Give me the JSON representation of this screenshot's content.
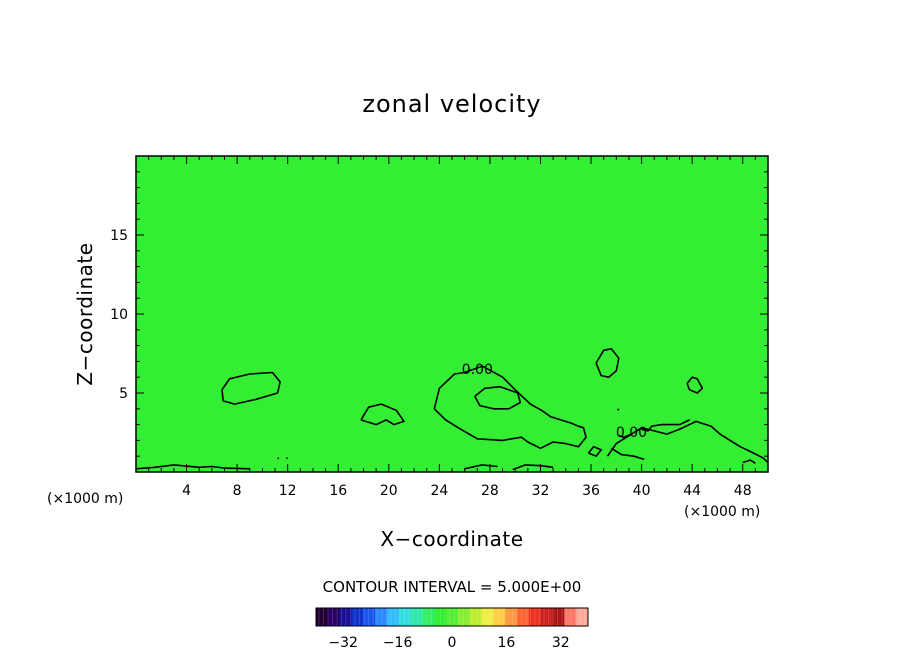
{
  "chart_data": {
    "type": "heatmap",
    "title": "zonal velocity",
    "xlabel": "X−coordinate",
    "ylabel": "Z−coordinate",
    "x_unit": "(×1000 m)",
    "z_unit": "(×1000 m)",
    "xlim": [
      0,
      50
    ],
    "ylim": [
      0,
      20
    ],
    "x_ticks": [
      4,
      8,
      12,
      16,
      20,
      24,
      28,
      32,
      36,
      40,
      44,
      48
    ],
    "x_tick_labels": [
      "4",
      "8",
      "12",
      "16",
      "20",
      "24",
      "28",
      "32",
      "36",
      "40",
      "44",
      "48"
    ],
    "y_ticks": [
      5,
      10,
      15
    ],
    "y_tick_labels": [
      "5",
      "10",
      "15"
    ],
    "background_value": 0,
    "fill_color": "#33ee33",
    "contour_interval_label": "CONTOUR INTERVAL = 5.000E+00",
    "contour_interval": 5.0,
    "contour_labels": [
      {
        "text": "0.00",
        "x": 27.0,
        "z": 6.2
      },
      {
        "text": "0.00",
        "x": 39.2,
        "z": 2.2
      }
    ],
    "contours": [
      {
        "level": 0,
        "points": [
          [
            6.8,
            5.2
          ],
          [
            7.4,
            5.9
          ],
          [
            9.0,
            6.2
          ],
          [
            10.8,
            6.3
          ],
          [
            11.4,
            5.7
          ],
          [
            11.2,
            5.0
          ],
          [
            9.5,
            4.6
          ],
          [
            7.8,
            4.3
          ],
          [
            6.9,
            4.5
          ],
          [
            6.8,
            5.2
          ]
        ]
      },
      {
        "level": 0,
        "points": [
          [
            17.8,
            3.3
          ],
          [
            18.4,
            4.1
          ],
          [
            19.4,
            4.3
          ],
          [
            20.6,
            3.9
          ],
          [
            21.2,
            3.2
          ],
          [
            20.4,
            3.0
          ],
          [
            19.8,
            3.3
          ],
          [
            19.0,
            3.0
          ],
          [
            17.8,
            3.3
          ]
        ]
      },
      {
        "level": 0,
        "points": [
          [
            23.6,
            4.0
          ],
          [
            24.0,
            5.3
          ],
          [
            25.2,
            6.2
          ],
          [
            26.0,
            6.3
          ],
          [
            27.4,
            6.7
          ],
          [
            29.0,
            6.0
          ],
          [
            30.0,
            5.2
          ],
          [
            31.2,
            4.3
          ],
          [
            32.1,
            3.9
          ],
          [
            32.8,
            3.5
          ],
          [
            33.6,
            3.3
          ],
          [
            34.4,
            3.1
          ],
          [
            35.0,
            2.9
          ],
          [
            35.4,
            2.8
          ],
          [
            35.6,
            2.2
          ],
          [
            35.0,
            1.6
          ],
          [
            34.0,
            1.8
          ],
          [
            33.0,
            1.9
          ],
          [
            32.0,
            1.5
          ],
          [
            31.0,
            1.9
          ],
          [
            30.5,
            2.2
          ],
          [
            29.0,
            2.0
          ],
          [
            27.0,
            2.1
          ],
          [
            25.5,
            2.8
          ],
          [
            24.5,
            3.3
          ],
          [
            23.6,
            4.0
          ]
        ]
      },
      {
        "level": 0,
        "points": [
          [
            26.8,
            4.8
          ],
          [
            27.6,
            5.3
          ],
          [
            28.8,
            5.4
          ],
          [
            30.2,
            5.0
          ],
          [
            30.4,
            4.4
          ],
          [
            29.5,
            4.0
          ],
          [
            28.3,
            4.0
          ],
          [
            27.2,
            4.2
          ],
          [
            26.8,
            4.8
          ]
        ]
      },
      {
        "level": 0,
        "points": [
          [
            36.4,
            6.9
          ],
          [
            37.0,
            7.7
          ],
          [
            37.6,
            7.8
          ],
          [
            38.2,
            7.2
          ],
          [
            38.0,
            6.4
          ],
          [
            37.4,
            6.0
          ],
          [
            36.8,
            6.1
          ],
          [
            36.4,
            6.9
          ]
        ]
      },
      {
        "level": 0,
        "points": [
          [
            35.8,
            1.2
          ],
          [
            36.2,
            1.6
          ],
          [
            36.8,
            1.4
          ],
          [
            36.4,
            1.0
          ],
          [
            35.8,
            1.2
          ]
        ]
      },
      {
        "level": 0,
        "points": [
          [
            37.3,
            1.0
          ],
          [
            38.0,
            1.8
          ],
          [
            39.2,
            2.4
          ],
          [
            40.0,
            2.8
          ],
          [
            41.0,
            2.6
          ],
          [
            42.0,
            2.4
          ],
          [
            43.0,
            2.7
          ],
          [
            44.3,
            3.2
          ],
          [
            45.5,
            2.9
          ],
          [
            46.2,
            2.4
          ],
          [
            47.0,
            2.0
          ],
          [
            47.8,
            1.6
          ],
          [
            48.6,
            1.3
          ],
          [
            49.6,
            0.9
          ],
          [
            50.0,
            0.6
          ]
        ]
      },
      {
        "level": 0,
        "points": [
          [
            40.0,
            2.7
          ],
          [
            40.5,
            2.6
          ],
          [
            40.8,
            2.9
          ],
          [
            41.6,
            3.0
          ],
          [
            43.0,
            3.0
          ],
          [
            43.8,
            3.3
          ]
        ]
      },
      {
        "level": 0,
        "points": [
          [
            38.2,
            2.3
          ],
          [
            38.6,
            2.2
          ],
          [
            39.2,
            2.4
          ]
        ]
      },
      {
        "level": 0,
        "points": [
          [
            37.6,
            1.5
          ],
          [
            38.4,
            1.1
          ],
          [
            39.4,
            1.0
          ],
          [
            40.2,
            0.8
          ]
        ]
      },
      {
        "level": 0,
        "points": [
          [
            43.6,
            5.6
          ],
          [
            44.0,
            6.0
          ],
          [
            44.4,
            5.9
          ],
          [
            44.8,
            5.3
          ],
          [
            44.4,
            5.0
          ],
          [
            43.8,
            5.2
          ],
          [
            43.6,
            5.6
          ]
        ]
      },
      {
        "level": 0,
        "points": [
          [
            0.0,
            0.2
          ],
          [
            1.5,
            0.3
          ],
          [
            3.0,
            0.45
          ],
          [
            5.0,
            0.3
          ],
          [
            6.0,
            0.35
          ],
          [
            7.0,
            0.25
          ],
          [
            9.0,
            0.2
          ]
        ]
      },
      {
        "level": 0,
        "points": [
          [
            29.8,
            0.15
          ],
          [
            30.8,
            0.45
          ],
          [
            32.0,
            0.4
          ],
          [
            33.0,
            0.3
          ]
        ]
      },
      {
        "level": 0,
        "points": [
          [
            26.0,
            0.2
          ],
          [
            27.4,
            0.45
          ],
          [
            28.6,
            0.35
          ]
        ]
      },
      {
        "level": 0,
        "points": [
          [
            48.0,
            0.6
          ],
          [
            48.6,
            0.75
          ],
          [
            49.0,
            0.55
          ]
        ]
      },
      {
        "level": 0,
        "points": [
          [
            38.1,
            3.9
          ],
          [
            38.2,
            4.0
          ]
        ]
      },
      {
        "level": 0,
        "points": [
          [
            11.2,
            0.85
          ],
          [
            11.3,
            0.9
          ]
        ]
      },
      {
        "level": 0,
        "points": [
          [
            11.9,
            0.85
          ],
          [
            12.0,
            0.9
          ]
        ]
      }
    ],
    "colorbar": {
      "vmin": -40,
      "vmax": 40,
      "ticks": [
        -32,
        -16,
        0,
        16,
        32
      ],
      "tick_labels": [
        "−32",
        "−16",
        "0",
        "16",
        "32"
      ],
      "colors": [
        "#220033",
        "#2a0066",
        "#1c0f99",
        "#1133cc",
        "#1a55ee",
        "#2c88ff",
        "#33bbff",
        "#33dddd",
        "#2fe8aa",
        "#33ee66",
        "#33ee33",
        "#55ee33",
        "#88ee33",
        "#bbee33",
        "#eeee44",
        "#ffcc44",
        "#ff9944",
        "#ff6633",
        "#ee3322",
        "#cc2222",
        "#aa1818",
        "#ff7766",
        "#ffaa99"
      ]
    }
  }
}
